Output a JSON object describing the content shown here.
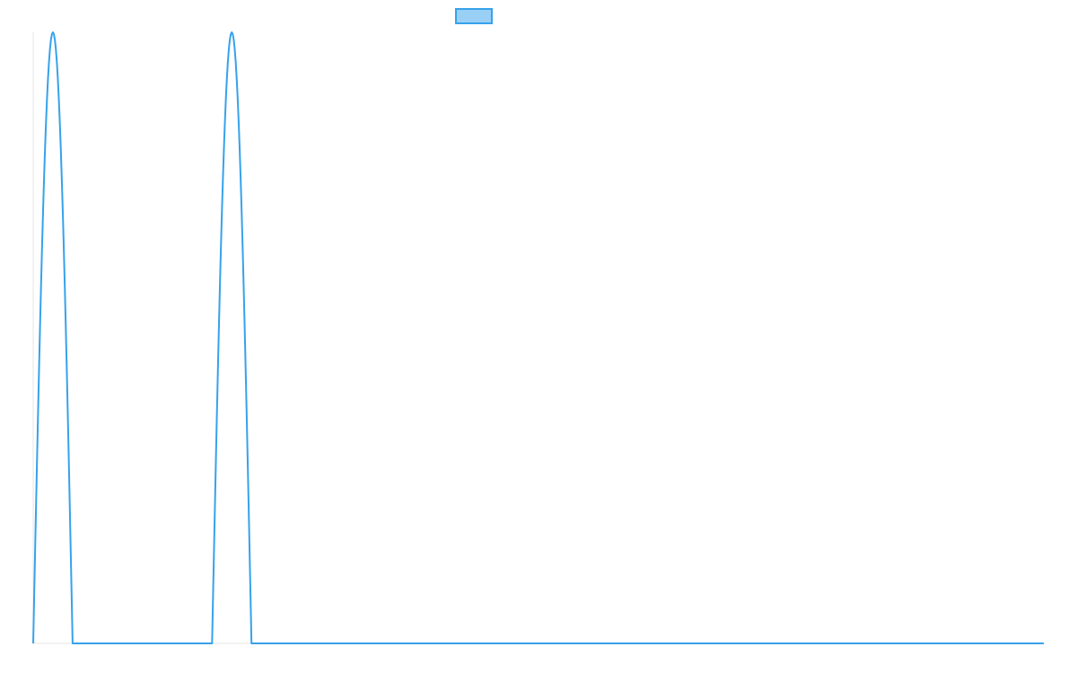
{
  "chart_data": {
    "type": "line",
    "title": "",
    "xlabel": "",
    "ylabel": "",
    "grid": false,
    "legend": {
      "placement": "top-center",
      "label": ""
    },
    "colors": {
      "line": "#36a2eb",
      "legend_fill": "#9ad0f5",
      "axis": "#e6e6e6"
    },
    "xlim": [
      0,
      100
    ],
    "ylim": [
      0,
      1
    ],
    "series": [
      {
        "peaks": [
          {
            "start": 0.0,
            "center": 1.95,
            "end": 3.9
          },
          {
            "start": 17.7,
            "center": 19.65,
            "end": 21.6
          }
        ],
        "baseline": 0
      }
    ]
  }
}
